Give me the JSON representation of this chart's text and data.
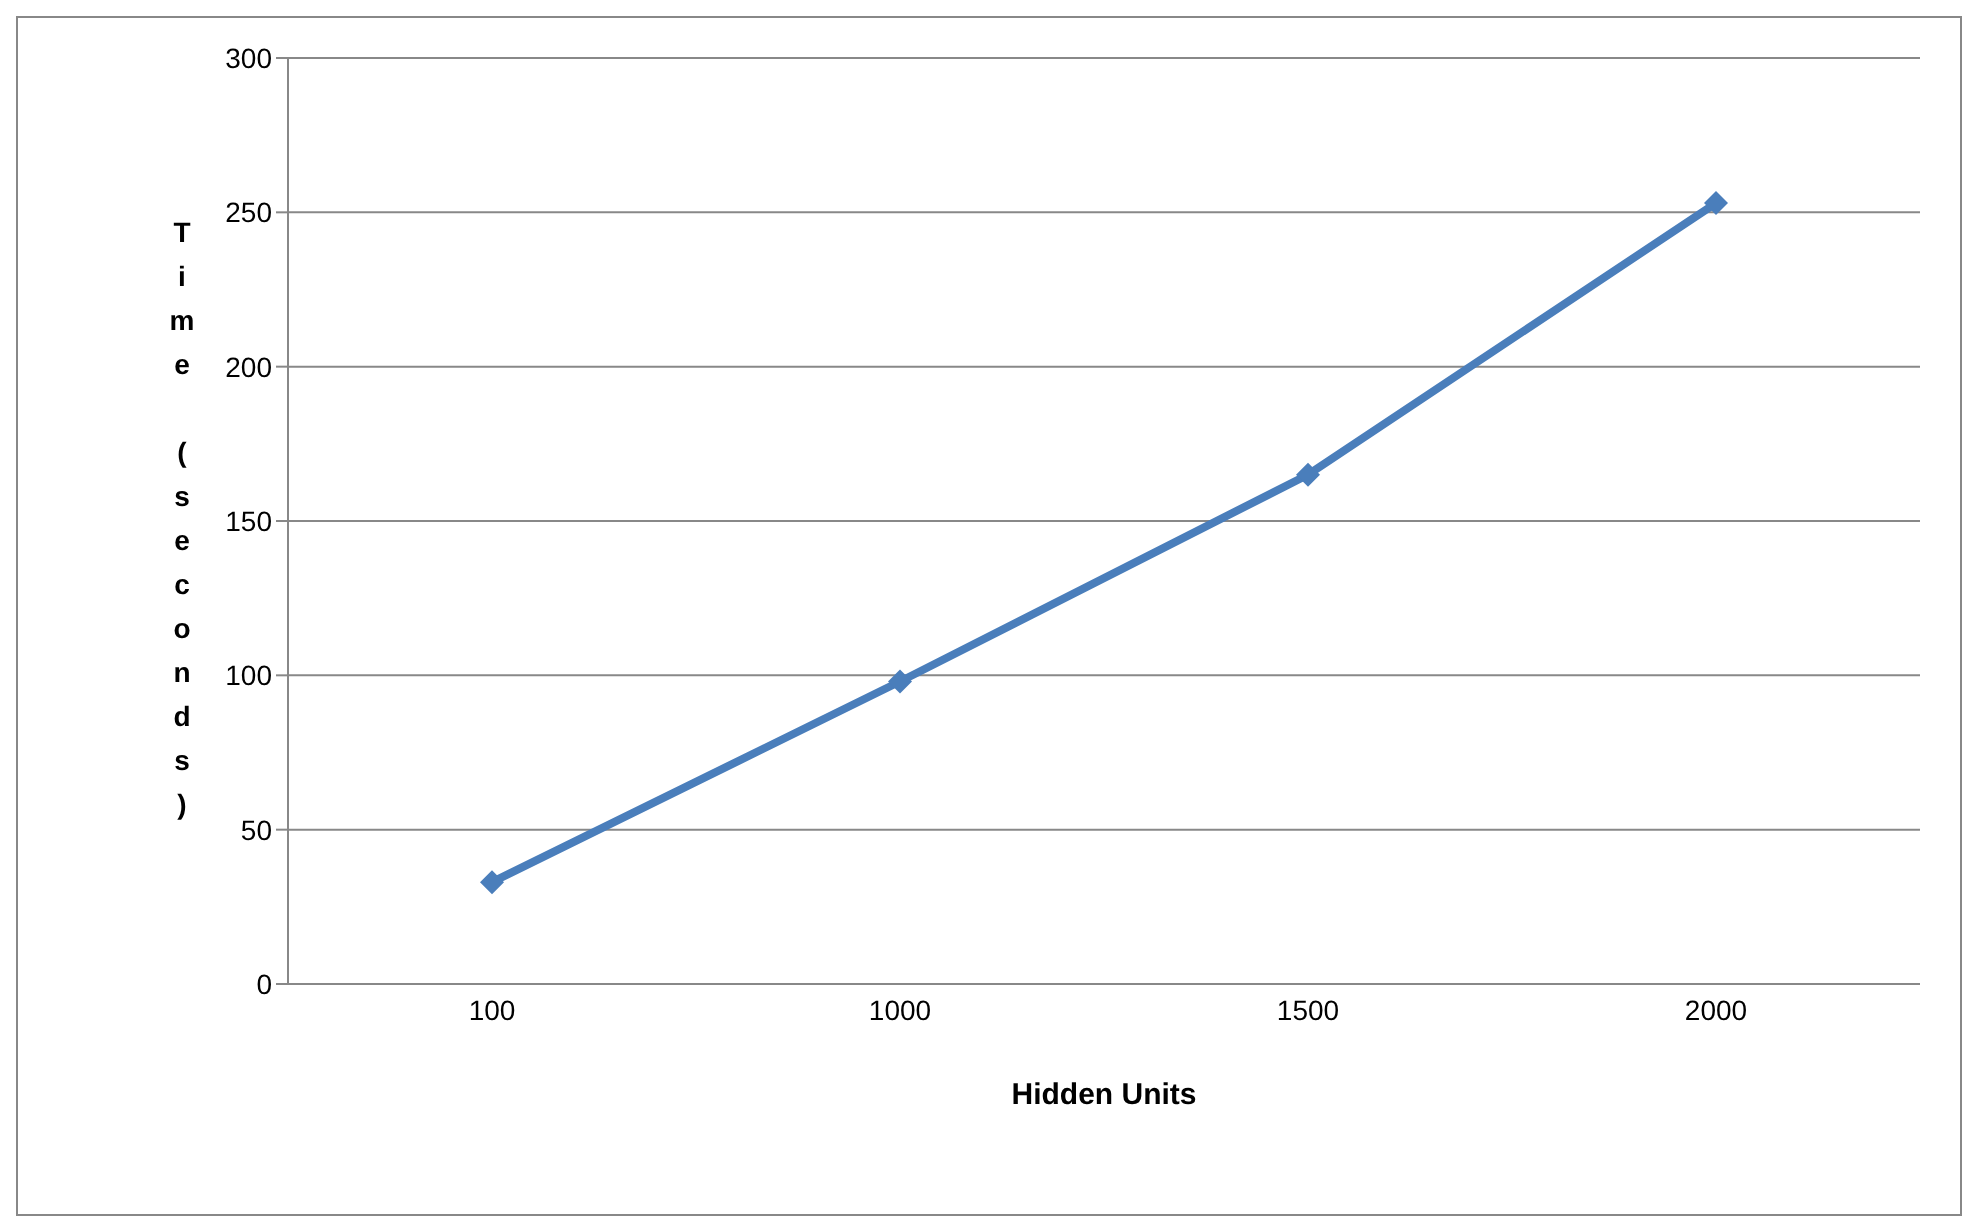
{
  "chart_data": {
    "type": "line",
    "xlabel": "Hidden Units",
    "ylabel": "Time (seconds)",
    "categories": [
      "100",
      "1000",
      "1500",
      "2000"
    ],
    "series": [
      {
        "color": "#4a7ebb",
        "values": [
          33,
          98,
          165,
          253
        ]
      }
    ],
    "ylim": [
      0,
      300
    ],
    "yticks": [
      0,
      50,
      100,
      150,
      200,
      250,
      300
    ],
    "grid": "y",
    "marker": "diamond",
    "line_style": "solid"
  }
}
